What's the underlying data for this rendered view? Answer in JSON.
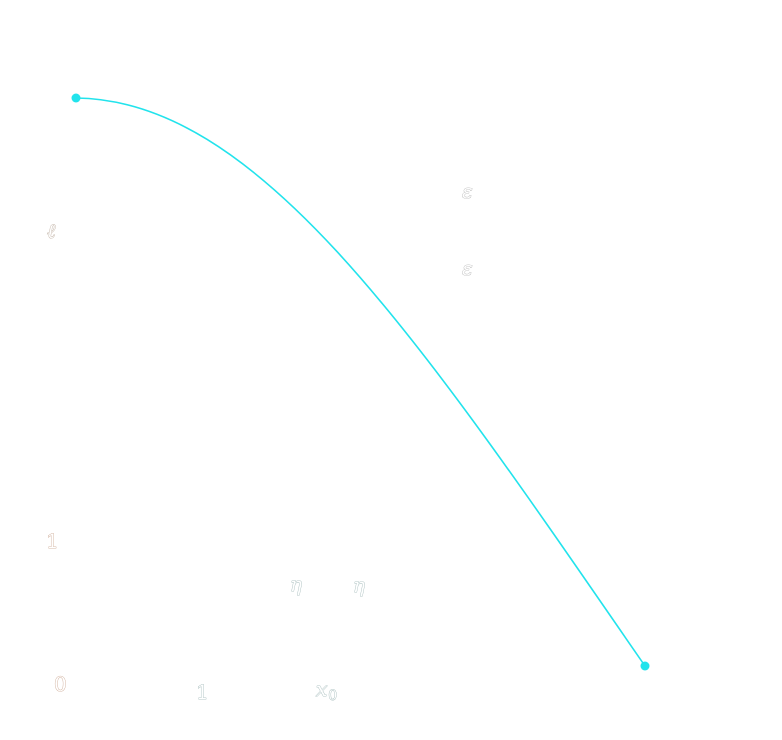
{
  "diagram": {
    "curve_color": "#22e3ec",
    "labels": {
      "ell": "ℓ",
      "eps_top": "ε",
      "eps_bottom": "ε",
      "one_vertical": "1",
      "eta_left": "η",
      "eta_right": "η",
      "zero": "0",
      "one_horizontal": "1",
      "x0_base": "x",
      "x0_sub": "0"
    }
  }
}
